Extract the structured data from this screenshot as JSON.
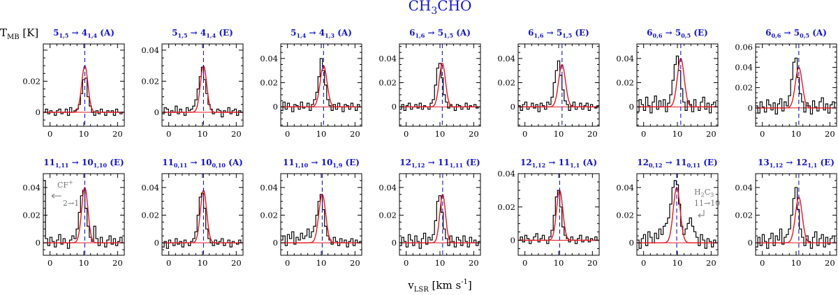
{
  "figure": {
    "title": "CH3CHO",
    "ylabel": "T_MB [K]",
    "xlabel": "v_LSR [km s^-1]",
    "line_color": "#e8141e",
    "vline_color": "#1414c8",
    "data_color": "#000000"
  },
  "chart_data": [
    {
      "type": "line",
      "title": "5(1,5) → 4(1,4) (A)",
      "label": {
        "a": "5",
        "as": "1,5",
        "b": "4",
        "bs": "1,4",
        "s": "(A)"
      },
      "xlim": [
        -2,
        22
      ],
      "ylim": [
        -0.009,
        0.044
      ],
      "yticks": [
        0,
        0.02
      ],
      "xticks": [
        0,
        10,
        20
      ],
      "v0": 10.3,
      "peak": 0.03,
      "fwhm": 2.2,
      "obs": [
        0.0,
        0.002,
        -0.001,
        0.001,
        0.0,
        -0.002,
        0.001,
        0.002,
        -0.001,
        0.0,
        0.002,
        -0.002,
        0.003,
        0.0,
        0.001,
        0.002,
        0.005,
        0.012,
        0.021,
        0.022,
        0.01,
        0.004,
        0.0,
        -0.002,
        0.001,
        -0.001,
        0.002,
        0.0,
        -0.002,
        0.001,
        0.0,
        0.001,
        -0.002,
        0.002,
        0.0,
        -0.001,
        0.0
      ]
    },
    {
      "type": "line",
      "title": "5(1,5) → 4(1,4) (E)",
      "label": {
        "a": "5",
        "as": "1,5",
        "b": "4",
        "bs": "1,4",
        "s": "(E)"
      },
      "xlim": [
        -2,
        22
      ],
      "ylim": [
        -0.009,
        0.044
      ],
      "yticks": [
        0,
        0.02,
        0.04
      ],
      "xticks": [
        0,
        10,
        20
      ],
      "v0": 10.3,
      "peak": 0.03,
      "fwhm": 2.2,
      "obs": [
        -0.001,
        0.003,
        0.002,
        -0.002,
        0.001,
        0.0,
        0.004,
        -0.001,
        0.002,
        0.0,
        -0.002,
        0.003,
        0.001,
        0.002,
        0.004,
        0.008,
        0.015,
        0.023,
        0.029,
        0.021,
        0.012,
        0.005,
        0.002,
        -0.001,
        0.0,
        0.002,
        0.001,
        -0.003,
        0.001,
        0.0,
        0.003,
        -0.001,
        0.001,
        0.002,
        -0.002,
        0.001,
        0.0
      ]
    },
    {
      "type": "line",
      "title": "5(1,4) → 4(1,3) (A)",
      "label": {
        "a": "5",
        "as": "1,4",
        "b": "4",
        "bs": "1,3",
        "s": "(A)"
      },
      "xlim": [
        -2,
        22
      ],
      "ylim": [
        -0.016,
        0.052
      ],
      "yticks": [
        0,
        0.02,
        0.04
      ],
      "xticks": [
        0,
        10,
        20
      ],
      "v0": 10.7,
      "peak": 0.034,
      "fwhm": 2.4,
      "obs": [
        -0.003,
        0.004,
        -0.002,
        0.003,
        0.0,
        -0.004,
        0.002,
        0.001,
        -0.002,
        0.004,
        -0.001,
        0.0,
        0.003,
        -0.003,
        0.002,
        0.006,
        0.012,
        0.025,
        0.04,
        0.03,
        0.018,
        0.006,
        0.001,
        -0.003,
        0.002,
        -0.002,
        0.003,
        0.0,
        -0.004,
        0.002,
        0.001,
        -0.002,
        0.003,
        0.0,
        -0.003,
        0.002,
        0.0
      ]
    },
    {
      "type": "line",
      "title": "6(1,6) → 5(1,5) (A)",
      "label": {
        "a": "6",
        "as": "1,6",
        "b": "5",
        "bs": "1,5",
        "s": "(A)"
      },
      "xlim": [
        -2,
        22
      ],
      "ylim": [
        -0.016,
        0.052
      ],
      "yticks": [
        0,
        0.02,
        0.04
      ],
      "xticks": [
        0,
        10,
        20
      ],
      "v0": 10.7,
      "peak": 0.036,
      "fwhm": 2.2,
      "obs": [
        -0.002,
        0.002,
        -0.003,
        0.001,
        0.003,
        -0.002,
        0.0,
        0.002,
        -0.001,
        0.003,
        -0.002,
        0.001,
        0.0,
        -0.002,
        0.003,
        0.006,
        0.018,
        0.032,
        0.036,
        0.024,
        0.01,
        0.004,
        -0.001,
        0.002,
        0.0,
        -0.003,
        0.002,
        0.001,
        -0.002,
        0.0,
        0.003,
        -0.002,
        0.001,
        0.0,
        0.002,
        -0.001,
        0.0
      ]
    },
    {
      "type": "line",
      "title": "6(1,6) → 5(1,5) (E)",
      "label": {
        "a": "6",
        "as": "1,6",
        "b": "5",
        "bs": "1,5",
        "s": "(E)"
      },
      "xlim": [
        -2,
        22
      ],
      "ylim": [
        -0.016,
        0.052
      ],
      "yticks": [
        0,
        0.02,
        0.04
      ],
      "xticks": [
        0,
        10,
        20
      ],
      "v0": 11.0,
      "peak": 0.035,
      "fwhm": 2.4,
      "obs": [
        0.001,
        -0.003,
        0.002,
        0.004,
        -0.002,
        0.0,
        0.003,
        -0.001,
        0.002,
        -0.004,
        0.003,
        0.001,
        -0.002,
        0.004,
        0.002,
        0.008,
        0.02,
        0.03,
        0.038,
        0.026,
        0.014,
        0.005,
        0.002,
        -0.003,
        0.001,
        0.004,
        -0.002,
        0.0,
        0.003,
        -0.002,
        0.001,
        0.003,
        -0.003,
        0.002,
        0.0,
        -0.001,
        0.001
      ]
    },
    {
      "type": "line",
      "title": "6(0,6) → 5(0,5) (E)",
      "label": {
        "a": "6",
        "as": "0,6",
        "b": "5",
        "bs": "0,5",
        "s": "(E)"
      },
      "xlim": [
        -2,
        22
      ],
      "ylim": [
        -0.016,
        0.052
      ],
      "yticks": [
        0,
        0.02,
        0.04
      ],
      "xticks": [
        0,
        10,
        20
      ],
      "v0": 11.0,
      "peak": 0.04,
      "fwhm": 2.4,
      "obs": [
        -0.004,
        0.006,
        0.002,
        -0.003,
        0.008,
        0.001,
        -0.005,
        0.004,
        0.009,
        -0.002,
        0.005,
        0.0,
        0.006,
        -0.004,
        0.003,
        0.01,
        0.022,
        0.035,
        0.042,
        0.03,
        0.015,
        0.004,
        -0.003,
        0.005,
        0.002,
        -0.004,
        0.006,
        0.0,
        -0.003,
        0.004,
        0.008,
        -0.002,
        0.003,
        -0.005,
        0.002,
        0.004,
        0.0
      ]
    },
    {
      "type": "line",
      "title": "6(0,6) → 5(0,5) (A)",
      "label": {
        "a": "6",
        "as": "0,6",
        "b": "5",
        "bs": "0,5",
        "s": "(A)"
      },
      "xlim": [
        -2,
        22
      ],
      "ylim": [
        -0.018,
        0.063
      ],
      "yticks": [
        0,
        0.02,
        0.04,
        0.06
      ],
      "xticks": [
        0,
        10,
        20
      ],
      "v0": 10.8,
      "peak": 0.04,
      "fwhm": 2.4,
      "obs": [
        0.002,
        -0.005,
        0.006,
        0.001,
        -0.004,
        0.008,
        0.003,
        -0.002,
        0.005,
        -0.006,
        0.004,
        0.009,
        -0.003,
        0.006,
        0.002,
        0.012,
        0.028,
        0.045,
        0.049,
        0.03,
        0.014,
        0.006,
        -0.004,
        0.005,
        0.002,
        -0.006,
        0.007,
        0.001,
        -0.003,
        0.006,
        0.01,
        -0.002,
        0.004,
        -0.005,
        0.003,
        0.006,
        0.0
      ]
    },
    {
      "type": "line",
      "title": "11(1,11) → 10(1,10) (E)",
      "label": {
        "a": "11",
        "as": "1,11",
        "b": "10",
        "bs": "1,10",
        "s": "(E)"
      },
      "xlim": [
        -2,
        22
      ],
      "ylim": [
        -0.009,
        0.05
      ],
      "yticks": [
        0,
        0.02,
        0.04
      ],
      "xticks": [
        0,
        10,
        20
      ],
      "v0": 10.3,
      "peak": 0.04,
      "fwhm": 2.2,
      "obs": [
        0.045,
        0.003,
        -0.002,
        0.004,
        0.001,
        -0.003,
        0.002,
        0.006,
        -0.001,
        0.003,
        0.0,
        -0.004,
        0.002,
        0.005,
        0.003,
        0.01,
        0.022,
        0.034,
        0.038,
        0.025,
        0.012,
        0.004,
        0.001,
        0.012,
        0.003,
        -0.002,
        0.004,
        0.0,
        -0.003,
        0.002,
        0.005,
        -0.001,
        0.003,
        -0.002,
        0.001,
        0.004,
        0.0
      ],
      "annotation": {
        "lines": [
          "CF+",
          "2→1"
        ],
        "arrow": "left"
      }
    },
    {
      "type": "line",
      "title": "11(0,11) → 10(0,10) (A)",
      "label": {
        "a": "11",
        "as": "0,11",
        "b": "10",
        "bs": "0,10",
        "s": "(A)"
      },
      "xlim": [
        -2,
        22
      ],
      "ylim": [
        -0.009,
        0.05
      ],
      "yticks": [
        0,
        0.02,
        0.04
      ],
      "xticks": [
        0,
        10,
        20
      ],
      "v0": 10.3,
      "peak": 0.038,
      "fwhm": 2.2,
      "obs": [
        -0.003,
        0.001,
        -0.004,
        0.002,
        0.0,
        -0.002,
        0.003,
        -0.001,
        0.001,
        -0.003,
        0.002,
        0.0,
        -0.002,
        0.001,
        0.003,
        0.008,
        0.02,
        0.033,
        0.036,
        0.025,
        0.01,
        0.003,
        0.0,
        -0.002,
        0.002,
        -0.001,
        0.001,
        0.003,
        -0.002,
        0.0,
        0.002,
        -0.003,
        0.001,
        0.0,
        -0.001,
        0.002,
        0.0
      ]
    },
    {
      "type": "line",
      "title": "11(1,10) → 10(1,9) (E)",
      "label": {
        "a": "11",
        "as": "1,10",
        "b": "10",
        "bs": "1,9",
        "s": "(E)"
      },
      "xlim": [
        -2,
        22
      ],
      "ylim": [
        -0.009,
        0.05
      ],
      "yticks": [
        0,
        0.02,
        0.04
      ],
      "xticks": [
        0,
        10,
        20
      ],
      "v0": 10.3,
      "peak": 0.035,
      "fwhm": 2.4,
      "obs": [
        0.002,
        0.005,
        -0.002,
        0.006,
        0.003,
        0.008,
        -0.001,
        0.004,
        0.002,
        0.007,
        0.003,
        0.005,
        0.01,
        0.004,
        0.008,
        0.012,
        0.02,
        0.03,
        0.035,
        0.024,
        0.012,
        0.005,
        0.002,
        -0.001,
        0.004,
        0.001,
        -0.002,
        0.003,
        0.0,
        0.002,
        -0.003,
        0.001,
        0.003,
        -0.002,
        0.002,
        0.0,
        0.001
      ]
    },
    {
      "type": "line",
      "title": "12(1,12) → 11(1,11) (E)",
      "label": {
        "a": "12",
        "as": "1,12",
        "b": "11",
        "bs": "1,11",
        "s": "(E)"
      },
      "xlim": [
        -2,
        22
      ],
      "ylim": [
        -0.009,
        0.05
      ],
      "yticks": [
        0,
        0.02,
        0.04
      ],
      "xticks": [
        0,
        10,
        20
      ],
      "v0": 10.8,
      "peak": 0.035,
      "fwhm": 2.0,
      "obs": [
        -0.002,
        0.004,
        0.001,
        -0.003,
        0.006,
        0.002,
        -0.002,
        0.005,
        0.001,
        -0.004,
        0.003,
        0.007,
        -0.001,
        0.004,
        0.002,
        0.006,
        0.016,
        0.03,
        0.034,
        0.022,
        0.01,
        0.003,
        -0.002,
        0.005,
        0.001,
        -0.003,
        0.004,
        0.002,
        -0.002,
        0.005,
        0.001,
        -0.003,
        0.004,
        0.0,
        0.002,
        -0.002,
        0.001
      ]
    },
    {
      "type": "line",
      "title": "12(1,12) → 11(1,1) (A)",
      "label": {
        "a": "12",
        "as": "1,12",
        "b": "11",
        "bs": "1,1",
        "s": "(A)"
      },
      "xlim": [
        -2,
        22
      ],
      "ylim": [
        -0.009,
        0.04
      ],
      "yticks": [
        0,
        0.02,
        0.04
      ],
      "xticks": [
        0,
        10,
        20
      ],
      "v0": 10.3,
      "peak": 0.03,
      "fwhm": 2.2,
      "obs": [
        0.0,
        0.002,
        -0.001,
        0.003,
        0.001,
        -0.002,
        0.0,
        0.002,
        0.004,
        -0.001,
        0.001,
        0.003,
        0.0,
        -0.002,
        0.002,
        0.006,
        0.015,
        0.026,
        0.03,
        0.02,
        0.008,
        0.003,
        0.001,
        -0.001,
        0.002,
        0.0,
        -0.002,
        0.001,
        0.003,
        -0.001,
        0.0,
        0.002,
        -0.001,
        0.001,
        0.0,
        0.002,
        0.0
      ]
    },
    {
      "type": "line",
      "title": "12(0,12) → 11(0,11) (E)",
      "label": {
        "a": "12",
        "as": "0,12",
        "b": "11",
        "bs": "0,11",
        "s": "(E)"
      },
      "xlim": [
        -2,
        22
      ],
      "ylim": [
        -0.009,
        0.05
      ],
      "yticks": [
        0,
        0.02,
        0.04
      ],
      "xticks": [
        0,
        10,
        20
      ],
      "v0": 9.8,
      "peak": 0.04,
      "fwhm": 2.4,
      "obs": [
        0.002,
        -0.004,
        0.003,
        0.006,
        -0.002,
        0.008,
        0.004,
        0.0,
        0.007,
        0.003,
        0.01,
        0.006,
        0.012,
        0.014,
        0.018,
        0.028,
        0.04,
        0.045,
        0.042,
        0.028,
        0.012,
        0.006,
        0.01,
        0.014,
        0.018,
        0.012,
        0.008,
        0.004,
        -0.002,
        0.006,
        0.002,
        -0.004,
        0.003,
        0.001,
        -0.003,
        0.002,
        0.0
      ],
      "annotation": {
        "lines": [
          "H2C3",
          "11→10"
        ],
        "arrow": "down-left"
      }
    },
    {
      "type": "line",
      "title": "13(1,12) → 12(1,1) (E)",
      "label": {
        "a": "13",
        "as": "1,12",
        "b": "12",
        "bs": "1,1",
        "s": "(E)"
      },
      "xlim": [
        -2,
        22
      ],
      "ylim": [
        -0.009,
        0.05
      ],
      "yticks": [
        0,
        0.02,
        0.04
      ],
      "xticks": [
        0,
        10,
        20
      ],
      "v0": 10.8,
      "peak": 0.033,
      "fwhm": 2.4,
      "obs": [
        -0.003,
        0.004,
        -0.002,
        0.006,
        0.001,
        -0.004,
        0.003,
        0.007,
        -0.002,
        0.005,
        0.002,
        0.01,
        -0.001,
        0.004,
        0.006,
        0.01,
        0.02,
        0.032,
        0.04,
        0.024,
        0.01,
        0.004,
        -0.002,
        0.005,
        0.001,
        -0.004,
        0.004,
        0.008,
        -0.002,
        0.003,
        0.006,
        -0.003,
        0.004,
        -0.001,
        0.003,
        0.005,
        0.0
      ]
    }
  ]
}
